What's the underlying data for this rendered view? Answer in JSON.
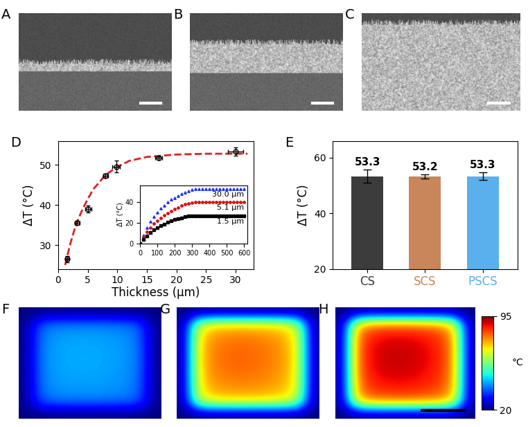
{
  "chart_data": [
    {
      "type": "micrograph",
      "title": "A"
    },
    {
      "type": "micrograph",
      "title": "B"
    },
    {
      "type": "micrograph",
      "title": "C"
    },
    {
      "type": "scatter",
      "title": "D",
      "x_label": "Thickness (μm)",
      "y_label": "ΔT (°C)",
      "xlim": [
        0,
        33
      ],
      "ylim": [
        24,
        56
      ],
      "xticks": [
        0,
        5,
        10,
        15,
        20,
        25,
        30
      ],
      "yticks": [
        30,
        40,
        50
      ],
      "series": [
        {
          "type": "line",
          "color": "#e02020",
          "line_style": "dashed",
          "x": [
            1.2,
            2,
            3,
            4,
            5,
            6,
            8,
            10,
            12,
            15,
            20,
            25,
            32
          ],
          "values": [
            25,
            30,
            35,
            38.5,
            41.5,
            44,
            47.5,
            49.5,
            51,
            52,
            52.6,
            52.8,
            52.8
          ]
        },
        {
          "type": "scatter",
          "color": "#000000",
          "marker": "circle",
          "x": [
            1.5,
            3.2,
            5.1,
            8.0,
            9.8,
            17.0,
            30.0
          ],
          "values": [
            26.5,
            35.5,
            39.0,
            47.3,
            49.6,
            51.7,
            53.3
          ],
          "x_errors": [
            0.3,
            0.4,
            0.5,
            0.4,
            0.6,
            0.6,
            1.3
          ],
          "y_errors": [
            0.8,
            0.5,
            0.9,
            0.5,
            1.5,
            0.5,
            1.0
          ]
        }
      ]
    },
    {
      "type": "scatter",
      "y_label": "ΔT (°C)",
      "xlim": [
        0,
        620
      ],
      "ylim": [
        0,
        56
      ],
      "xticks": [
        0,
        100,
        200,
        300,
        400,
        500,
        600
      ],
      "yticks": [
        0,
        20,
        40
      ],
      "series": [
        {
          "name": "30.0 μm",
          "type": "scatter",
          "color": "#1f2fff",
          "marker": "triangle",
          "x": [
            0,
            20,
            40,
            60,
            80,
            100,
            120,
            140,
            160,
            180,
            200,
            220,
            240,
            260,
            280,
            300,
            320,
            340,
            360,
            380,
            400,
            420,
            440,
            460,
            480,
            500,
            520,
            540,
            560,
            580,
            600
          ],
          "values": [
            0,
            8,
            15,
            21,
            26,
            30,
            34,
            37,
            40,
            42.5,
            44.5,
            46.5,
            48.3,
            49.8,
            51,
            52,
            52.7,
            53,
            53,
            53,
            53,
            53,
            53,
            53,
            53,
            53,
            53,
            53,
            53,
            53,
            53
          ]
        },
        {
          "name": "5.1 μm",
          "type": "scatter",
          "color": "#e01010",
          "marker": "circle",
          "x": [
            0,
            20,
            40,
            60,
            80,
            100,
            120,
            140,
            160,
            180,
            200,
            220,
            240,
            260,
            280,
            300,
            320,
            340,
            360,
            380,
            400,
            420,
            440,
            460,
            480,
            500,
            520,
            540,
            560,
            580,
            600
          ],
          "values": [
            0,
            6,
            11,
            15.5,
            19,
            22,
            25,
            27.5,
            29.5,
            31.5,
            33.3,
            35,
            36.5,
            37.8,
            38.8,
            39.5,
            40,
            40,
            40,
            40,
            40,
            40,
            40,
            40,
            40,
            40,
            40,
            40,
            40,
            40,
            40
          ]
        },
        {
          "name": "1.5 μm",
          "type": "scatter",
          "color": "#000000",
          "marker": "square",
          "x": [
            0,
            20,
            40,
            60,
            80,
            100,
            120,
            140,
            160,
            180,
            200,
            220,
            240,
            260,
            280,
            300,
            320,
            340,
            360,
            380,
            400,
            420,
            440,
            460,
            480,
            500,
            520,
            540,
            560,
            580,
            600
          ],
          "values": [
            0,
            4,
            7.5,
            10.5,
            13,
            15.2,
            17,
            18.8,
            20.3,
            21.7,
            23,
            24,
            25,
            25.8,
            26.4,
            26.8,
            27,
            27,
            27,
            27,
            27,
            27,
            27,
            27,
            27,
            27,
            27,
            27,
            27,
            27,
            27
          ]
        }
      ]
    },
    {
      "type": "bar",
      "title": "E",
      "y_label": "ΔT (°C)",
      "categories": [
        "CS",
        "SCS",
        "PSCS"
      ],
      "values": [
        53.3,
        53.2,
        53.3
      ],
      "errors": [
        2.3,
        0.7,
        1.4
      ],
      "colors": [
        "#3c3c3c",
        "#c8865a",
        "#5ab0ec"
      ],
      "ylim": [
        20,
        66
      ],
      "yticks": [
        20,
        40,
        60
      ],
      "data_labels": true
    },
    {
      "type": "thermal_image",
      "title": "F",
      "peak": 42
    },
    {
      "type": "thermal_image",
      "title": "G",
      "peak": 80
    },
    {
      "type": "thermal_image",
      "title": "H",
      "peak": 90,
      "colorbar": {
        "range": [
          20,
          95
        ],
        "ticks": [
          20,
          95
        ],
        "label": "°C"
      }
    }
  ]
}
